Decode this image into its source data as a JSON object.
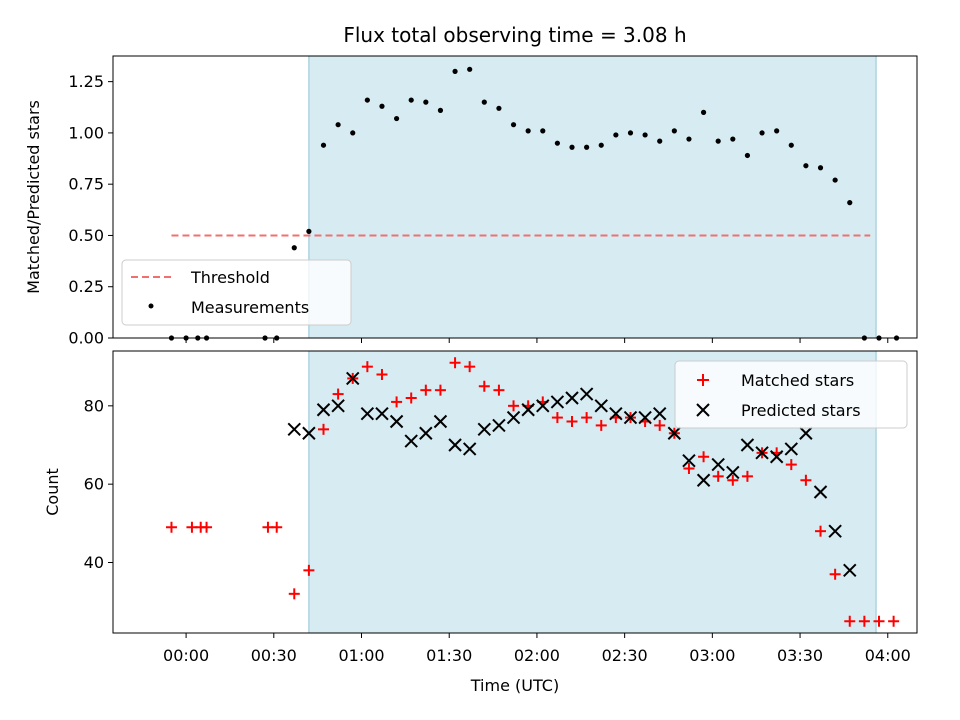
{
  "chart_data": [
    {
      "type": "scatter",
      "title": "Flux total observing time = 3.08 h",
      "xlabel": "",
      "ylabel": "Matched/Predicted stars",
      "ylim": [
        0,
        1.375
      ],
      "yticks": [
        "0.00",
        "0.25",
        "0.50",
        "0.75",
        "1.00",
        "1.25"
      ],
      "xlim_minutes": [
        -25,
        250
      ],
      "xticks_minutes": [
        0,
        30,
        60,
        90,
        120,
        150,
        180,
        210,
        240
      ],
      "shaded_interval_minutes": [
        42,
        236
      ],
      "threshold": {
        "name": "Threshold",
        "value": 0.5,
        "x_range_minutes": [
          -5,
          234
        ],
        "color": "#f07070"
      },
      "series": [
        {
          "name": "Measurements",
          "color": "#000000",
          "x_minutes": [
            -5,
            0,
            4,
            7,
            27,
            31,
            37,
            42,
            47,
            52,
            57,
            62,
            67,
            72,
            77,
            82,
            87,
            92,
            97,
            102,
            107,
            112,
            117,
            122,
            127,
            132,
            137,
            142,
            147,
            152,
            157,
            162,
            167,
            172,
            177,
            182,
            187,
            192,
            197,
            202,
            207,
            212,
            217,
            222,
            227,
            232,
            237,
            243
          ],
          "y": [
            0,
            0,
            0,
            0,
            0,
            0,
            0.44,
            0.52,
            0.94,
            1.04,
            1.0,
            1.16,
            1.13,
            1.07,
            1.16,
            1.15,
            1.11,
            1.3,
            1.31,
            1.15,
            1.12,
            1.04,
            1.01,
            1.01,
            0.95,
            0.93,
            0.93,
            0.94,
            0.99,
            1.0,
            0.99,
            0.96,
            1.01,
            0.97,
            1.1,
            0.96,
            0.97,
            0.89,
            1.0,
            1.01,
            0.94,
            0.84,
            0.83,
            0.77,
            0.66,
            0,
            0,
            0
          ]
        }
      ],
      "legend": {
        "placement": "lower-left",
        "entries": [
          "Threshold",
          "Measurements"
        ]
      }
    },
    {
      "type": "scatter",
      "title": "",
      "xlabel": "Time (UTC)",
      "ylabel": "Count",
      "ylim": [
        22,
        94
      ],
      "yticks": [
        "40",
        "60",
        "80"
      ],
      "xticklabels": [
        "00:00",
        "00:30",
        "01:00",
        "01:30",
        "02:00",
        "02:30",
        "03:00",
        "03:30",
        "04:00"
      ],
      "xticks_minutes": [
        0,
        30,
        60,
        90,
        120,
        150,
        180,
        210,
        240
      ],
      "shaded_interval_minutes": [
        42,
        236
      ],
      "series": [
        {
          "name": "Matched stars",
          "marker": "plus",
          "color": "#ff0000",
          "x_minutes": [
            -5,
            2,
            5,
            7,
            28,
            31,
            37,
            42,
            47,
            52,
            57,
            62,
            67,
            72,
            77,
            82,
            87,
            92,
            97,
            102,
            107,
            112,
            117,
            122,
            127,
            132,
            137,
            142,
            147,
            152,
            157,
            162,
            167,
            172,
            177,
            182,
            187,
            192,
            197,
            202,
            207,
            212,
            217,
            222,
            227,
            232,
            237,
            242
          ],
          "y": [
            49,
            49,
            49,
            49,
            49,
            49,
            32,
            38,
            74,
            83,
            87,
            90,
            88,
            81,
            82,
            84,
            84,
            91,
            90,
            85,
            84,
            80,
            80,
            81,
            77,
            76,
            77,
            75,
            77,
            77,
            76,
            75,
            73,
            64,
            67,
            62,
            61,
            62,
            68,
            68,
            65,
            61,
            48,
            37,
            25,
            25,
            25,
            25
          ]
        },
        {
          "name": "Predicted stars",
          "marker": "x",
          "color": "#000000",
          "x_minutes": [
            37,
            42,
            47,
            52,
            57,
            62,
            67,
            72,
            77,
            82,
            87,
            92,
            97,
            102,
            107,
            112,
            117,
            122,
            127,
            132,
            137,
            142,
            147,
            152,
            157,
            162,
            167,
            172,
            177,
            182,
            187,
            192,
            197,
            202,
            207,
            212,
            217,
            222,
            227
          ],
          "y": [
            74,
            73,
            79,
            80,
            87,
            78,
            78,
            76,
            71,
            73,
            76,
            70,
            69,
            74,
            75,
            77,
            79,
            80,
            81,
            82,
            83,
            80,
            78,
            77,
            77,
            78,
            73,
            66,
            61,
            65,
            63,
            70,
            68,
            67,
            69,
            73,
            58,
            48,
            38
          ]
        }
      ],
      "legend": {
        "placement": "top-right",
        "entries": [
          "Matched stars",
          "Predicted stars"
        ]
      }
    }
  ]
}
